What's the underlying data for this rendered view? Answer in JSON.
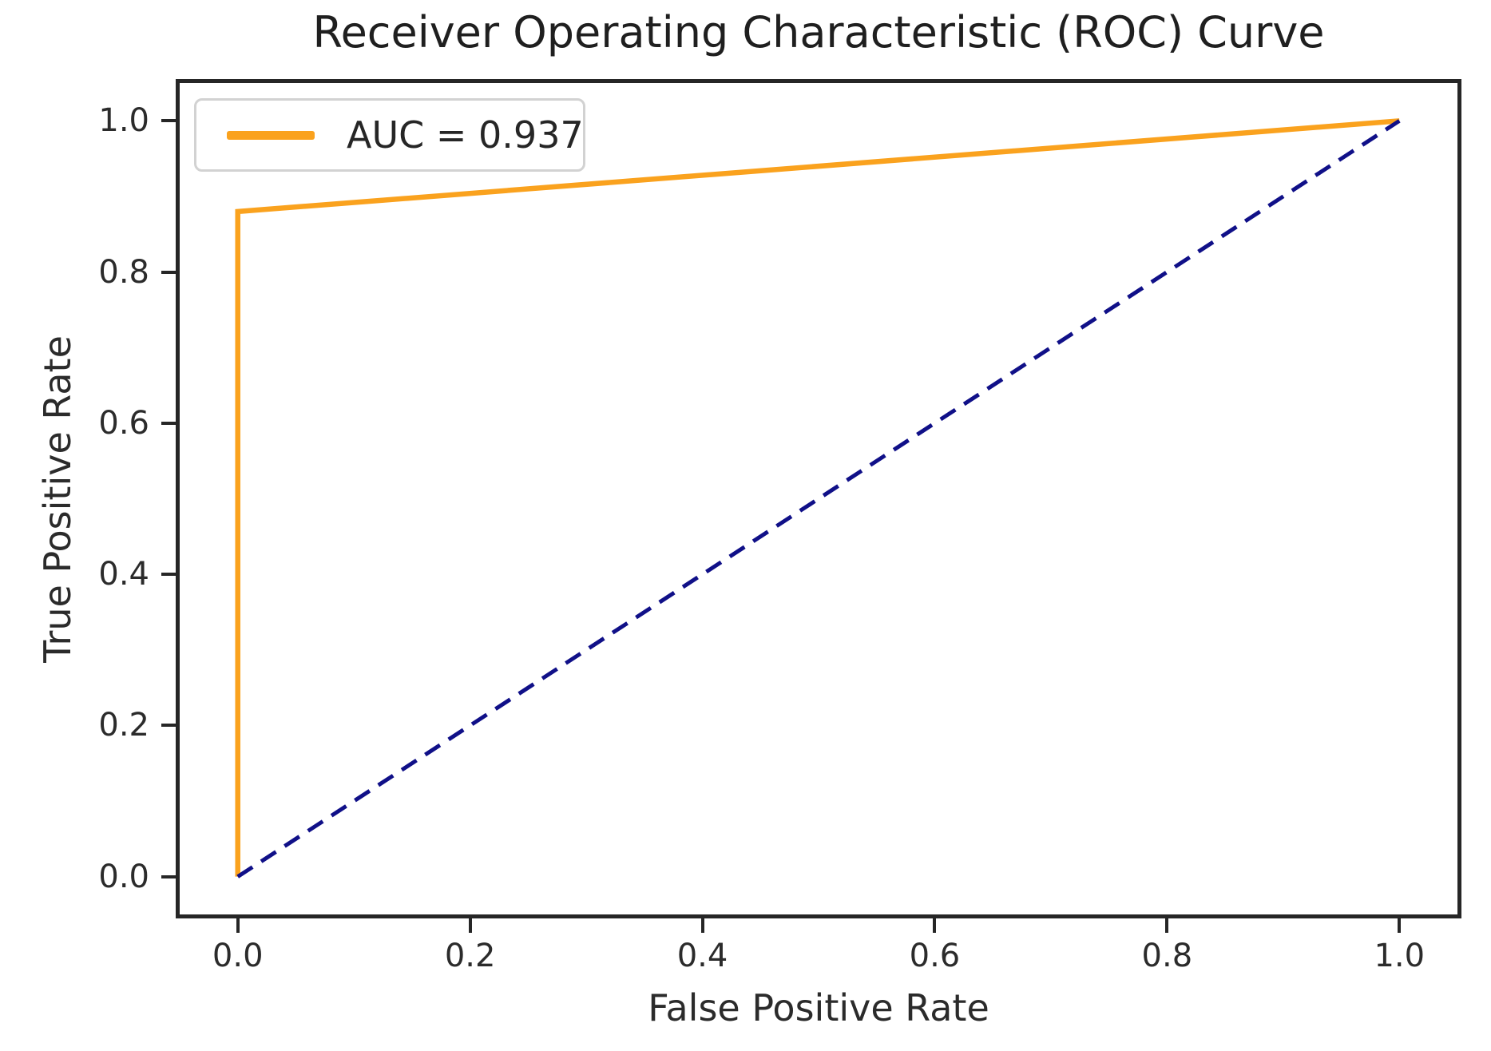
{
  "chart_data": {
    "type": "line",
    "title": "Receiver Operating Characteristic (ROC) Curve",
    "xlabel": "False Positive Rate",
    "ylabel": "True Positive Rate",
    "xlim": [
      -0.05,
      1.05
    ],
    "ylim": [
      -0.05,
      1.05
    ],
    "grid": false,
    "x_ticks": {
      "values": [
        0.0,
        0.2,
        0.4,
        0.6,
        0.8,
        1.0
      ],
      "labels": [
        "0.0",
        "0.2",
        "0.4",
        "0.6",
        "0.8",
        "1.0"
      ]
    },
    "y_ticks": {
      "values": [
        0.0,
        0.2,
        0.4,
        0.6,
        0.8,
        1.0
      ],
      "labels": [
        "0.0",
        "0.2",
        "0.4",
        "0.6",
        "0.8",
        "1.0"
      ]
    },
    "series": [
      {
        "name": "roc-curve",
        "color": "#faa21e",
        "style": "solid",
        "width": 6.5,
        "x": [
          0.0,
          0.0,
          1.0
        ],
        "y": [
          0.0,
          0.88,
          1.0
        ]
      },
      {
        "name": "diagonal-reference",
        "color": "#101088",
        "style": "dashed",
        "width": 5,
        "x": [
          0.0,
          1.0
        ],
        "y": [
          0.0,
          1.0
        ]
      }
    ],
    "legend": {
      "position": "upper left",
      "entries": [
        {
          "label": "AUC = 0.937",
          "color": "#faa21e",
          "style": "solid"
        }
      ]
    },
    "auc": 0.937,
    "colors": {
      "spine": "#262626",
      "text": "#262626",
      "legend_border": "#d2d2d2"
    }
  }
}
